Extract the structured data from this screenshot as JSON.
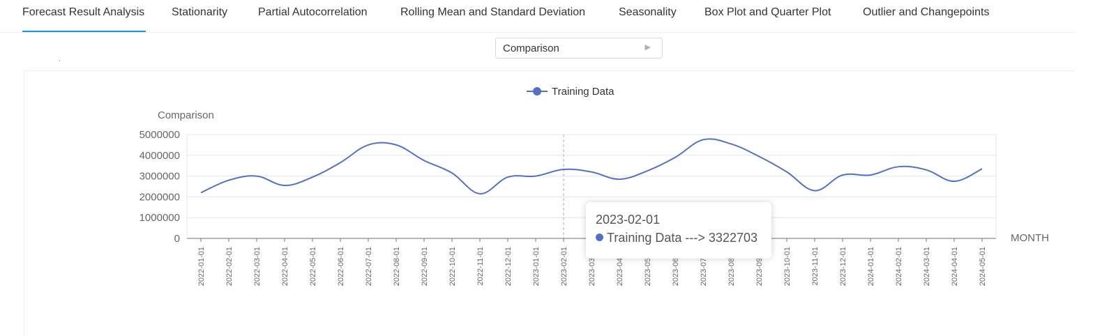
{
  "tabs": [
    {
      "label": "Forecast Result Analysis",
      "active": true
    },
    {
      "label": "Stationarity",
      "active": false
    },
    {
      "label": "Partial Autocorrelation",
      "active": false
    },
    {
      "label": "Rolling Mean and Standard Deviation",
      "active": false
    },
    {
      "label": "Seasonality",
      "active": false
    },
    {
      "label": "Box Plot and Quarter Plot",
      "active": false
    },
    {
      "label": "Outlier and Changepoints",
      "active": false
    }
  ],
  "select": {
    "value": "Comparison",
    "arrow_icon": "caret-right-icon"
  },
  "panel": {
    "stray_mark": "."
  },
  "colors": {
    "accent": "#1890ff",
    "series": "#5470c6"
  },
  "chart_data": {
    "type": "line",
    "ylabel": "Comparison",
    "xlabel": "MONTH",
    "ylim": [
      0,
      5000000
    ],
    "yticks": [
      "5000000",
      "4000000",
      "3000000",
      "2000000",
      "1000000",
      "0"
    ],
    "smooth": true,
    "legend": "top-center",
    "x": [
      "2022-01-01",
      "2022-02-01",
      "2022-03-01",
      "2022-04-01",
      "2022-05-01",
      "2022-06-01",
      "2022-07-01",
      "2022-08-01",
      "2022-09-01",
      "2022-10-01",
      "2022-11-01",
      "2022-12-01",
      "2023-01-01",
      "2023-02-01",
      "2023-03-01",
      "2023-04-01",
      "2023-05-01",
      "2023-06-01",
      "2023-07-01",
      "2023-08-01",
      "2023-09-01",
      "2023-10-01",
      "2023-11-01",
      "2023-12-01",
      "2024-01-01",
      "2024-02-01",
      "2024-03-01",
      "2024-04-01",
      "2024-05-01"
    ],
    "series": [
      {
        "name": "Training Data",
        "values": [
          2200000,
          2800000,
          3000000,
          2550000,
          2950000,
          3650000,
          4500000,
          4500000,
          3750000,
          3150000,
          2150000,
          2950000,
          3000000,
          3322703,
          3200000,
          2850000,
          3250000,
          3900000,
          4750000,
          4550000,
          3950000,
          3200000,
          2300000,
          3050000,
          3050000,
          3450000,
          3300000,
          2750000,
          3350000
        ]
      }
    ],
    "tooltip": {
      "title": "2023-02-01",
      "series": "Training Data",
      "arrow": "--->",
      "value": "3322703"
    }
  }
}
